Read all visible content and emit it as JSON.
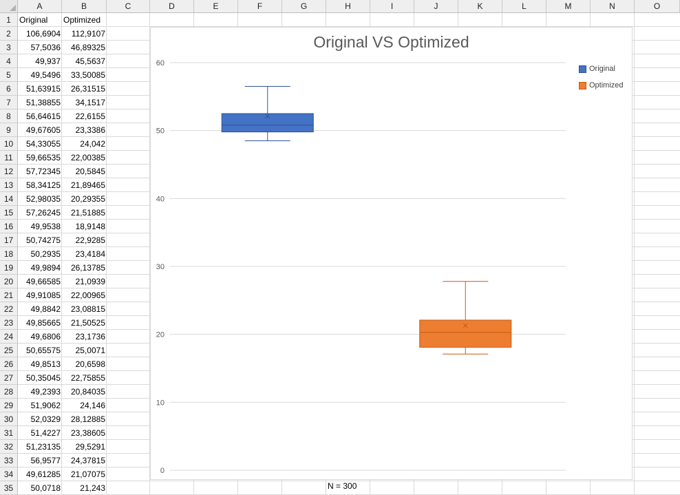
{
  "columns": [
    "A",
    "B",
    "C",
    "D",
    "E",
    "F",
    "G",
    "H",
    "I",
    "J",
    "K",
    "L",
    "M",
    "N",
    "O"
  ],
  "rows": [
    1,
    2,
    3,
    4,
    5,
    6,
    7,
    8,
    9,
    10,
    11,
    12,
    13,
    14,
    15,
    16,
    17,
    18,
    19,
    20,
    21,
    22,
    23,
    24,
    25,
    26,
    27,
    28,
    29,
    30,
    31,
    32,
    33,
    34,
    35
  ],
  "table": {
    "headers": [
      "Original",
      "Optimized"
    ],
    "values": [
      [
        "106,6904",
        "112,9107"
      ],
      [
        "57,5036",
        "46,89325"
      ],
      [
        "49,937",
        "45,5637"
      ],
      [
        "49,5496",
        "33,50085"
      ],
      [
        "51,63915",
        "26,31515"
      ],
      [
        "51,38855",
        "34,1517"
      ],
      [
        "56,64615",
        "22,6155"
      ],
      [
        "49,67605",
        "23,3386"
      ],
      [
        "54,33055",
        "24,042"
      ],
      [
        "59,66535",
        "22,00385"
      ],
      [
        "57,72345",
        "20,5845"
      ],
      [
        "58,34125",
        "21,89465"
      ],
      [
        "52,98035",
        "20,29355"
      ],
      [
        "57,26245",
        "21,51885"
      ],
      [
        "49,9538",
        "18,9148"
      ],
      [
        "50,74275",
        "22,9285"
      ],
      [
        "50,2935",
        "23,4184"
      ],
      [
        "49,9894",
        "26,13785"
      ],
      [
        "49,66585",
        "21,0939"
      ],
      [
        "49,91085",
        "22,00965"
      ],
      [
        "49,8842",
        "23,08815"
      ],
      [
        "49,85665",
        "21,50525"
      ],
      [
        "49,6806",
        "23,1736"
      ],
      [
        "50,65575",
        "25,0071"
      ],
      [
        "49,8513",
        "20,6598"
      ],
      [
        "50,35045",
        "22,75855"
      ],
      [
        "49,2393",
        "20,84035"
      ],
      [
        "51,9062",
        "24,146"
      ],
      [
        "52,0329",
        "28,12885"
      ],
      [
        "51,4227",
        "23,38605"
      ],
      [
        "51,23135",
        "29,5291"
      ],
      [
        "56,9577",
        "24,37815"
      ],
      [
        "49,61285",
        "21,07075"
      ],
      [
        "50,0718",
        "21,243"
      ]
    ]
  },
  "footer": {
    "note": "N = 300"
  },
  "chart_data": {
    "type": "box",
    "title": "Original VS Optimized",
    "xlabel": "",
    "ylabel": "",
    "ylim": [
      0,
      60
    ],
    "yticks": [
      "0",
      "10",
      "20",
      "30",
      "40",
      "50",
      "60"
    ],
    "grid": true,
    "legend_position": "top-right",
    "series": [
      {
        "name": "Original",
        "color": "#4472c4",
        "stroke": "#2f528f",
        "min": 48.5,
        "q1": 49.8,
        "median": 50.8,
        "q3": 52.5,
        "max": 56.5,
        "mean": 52.1
      },
      {
        "name": "Optimized",
        "color": "#ed7d31",
        "stroke": "#c55a11",
        "min": 17.1,
        "q1": 18.1,
        "median": 20.3,
        "q3": 22.1,
        "max": 27.8,
        "mean": 21.3
      }
    ]
  }
}
